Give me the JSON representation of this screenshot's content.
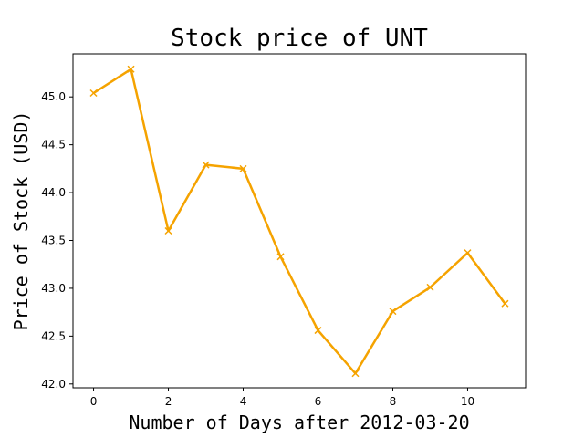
{
  "chart_data": {
    "type": "line",
    "title": "Stock price of UNT",
    "xlabel": "Number of Days after 2012-03-20",
    "ylabel": "Price of Stock (USD)",
    "xlim": [
      -0.55,
      11.55
    ],
    "ylim": [
      41.96,
      45.45
    ],
    "xticks": [
      0,
      2,
      4,
      6,
      8,
      10
    ],
    "xtick_labels": [
      "0",
      "2",
      "4",
      "6",
      "8",
      "10"
    ],
    "yticks": [
      42.0,
      42.5,
      43.0,
      43.5,
      44.0,
      44.5,
      45.0
    ],
    "ytick_labels": [
      "42.0",
      "42.5",
      "43.0",
      "43.5",
      "44.0",
      "44.5",
      "45.0"
    ],
    "grid": false,
    "legend": "none",
    "series": [
      {
        "color": "#f5a300",
        "marker": "x",
        "x": [
          0,
          1,
          2,
          3,
          4,
          5,
          6,
          7,
          8,
          9,
          10,
          11
        ],
        "y": [
          45.04,
          45.29,
          43.6,
          44.29,
          44.25,
          43.33,
          42.56,
          42.11,
          42.76,
          43.01,
          43.37,
          42.84
        ]
      }
    ]
  }
}
